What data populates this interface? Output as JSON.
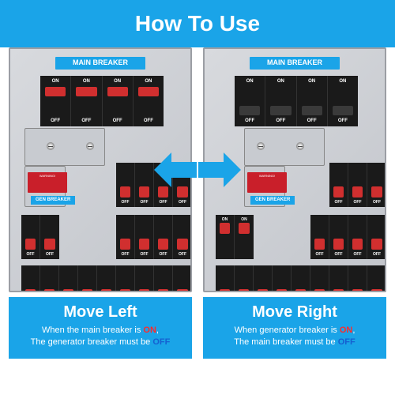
{
  "title": "How To Use",
  "colors": {
    "header_bg": "#1aa4e8",
    "summary_bg": "#1aa4e8",
    "arrow": "#1aa4e8",
    "panel_bg": "#cfd2d7",
    "breaker_bg": "#1a1a1a",
    "switch_red": "#d12f2f",
    "switch_off": "#3a3a3a",
    "main_label_bg": "#1aa4e8",
    "warning_bg": "#c91f2a",
    "gen_label_bg": "#1aa4e8",
    "on_text": "#ff2a2a",
    "off_text": "#1560d1"
  },
  "labels": {
    "main_breaker": "MAIN BREAKER",
    "on": "ON",
    "off": "OFF",
    "warning": "WARNING!",
    "gen_breaker": "GEN BREAKER"
  },
  "left": {
    "direction": "left",
    "main_on": true,
    "gen_on": false,
    "title": "Move Left",
    "line1_pre": "When the main breaker is ",
    "line1_kw": "ON",
    "line1_post": ",",
    "line2_pre": "The generator breaker must be ",
    "line2_kw": "OFF"
  },
  "right": {
    "direction": "right",
    "main_on": false,
    "gen_on": true,
    "title": "Move Right",
    "line1_pre": "When generator breaker is ",
    "line1_kw": "ON",
    "line1_post": ",",
    "line2_pre": "The main breaker must be ",
    "line2_kw": "OFF"
  }
}
